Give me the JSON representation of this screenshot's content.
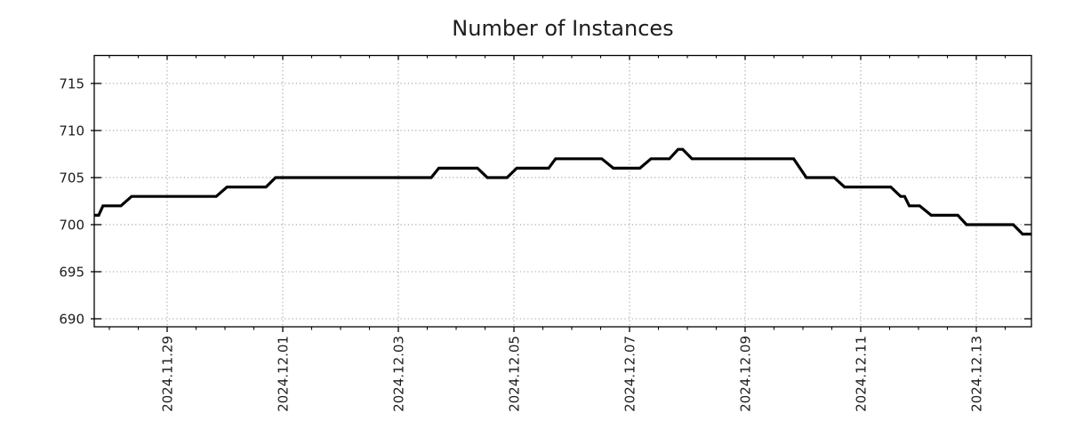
{
  "title": "Number of Instances",
  "colors": {
    "background": "#ffffff",
    "line": "#000000",
    "axis": "#000000",
    "grid": "#9e9e9e",
    "text": "#1c1c1c"
  },
  "chart_data": {
    "type": "line",
    "title": "Number of Instances",
    "legend": {
      "visible": false
    },
    "grid": {
      "on": true,
      "style": "dotted"
    },
    "x_axis": {
      "label": "",
      "unit": "days_from_2024.11.29",
      "range_days": [
        -1.2615,
        14.9538
      ],
      "major_tick_days": [
        0,
        2,
        4,
        6,
        8,
        10,
        12,
        14
      ],
      "tick_labels": [
        "2024.11.29",
        "2024.12.01",
        "2024.12.03",
        "2024.12.05",
        "2024.12.07",
        "2024.12.09",
        "2024.12.11",
        "2024.12.13"
      ],
      "minor_tick_step_days": 0.5,
      "label_rotation_deg": -90
    },
    "y_axis": {
      "label": "",
      "range": [
        689.15,
        717.97
      ],
      "tick_values": [
        690,
        695,
        700,
        705,
        710,
        715
      ],
      "tick_labels": [
        "690",
        "695",
        "700",
        "705",
        "710",
        "715"
      ]
    },
    "series": [
      {
        "name": "instances",
        "color": "#000000",
        "line_width": 3.2,
        "points_day_value": [
          [
            -1.262,
            701
          ],
          [
            -1.185,
            701
          ],
          [
            -1.11,
            702
          ],
          [
            -0.8,
            702
          ],
          [
            -0.615,
            703
          ],
          [
            0.85,
            703
          ],
          [
            1.035,
            704
          ],
          [
            1.71,
            704
          ],
          [
            1.875,
            705
          ],
          [
            4.57,
            705
          ],
          [
            4.7,
            706
          ],
          [
            5.37,
            706
          ],
          [
            5.54,
            705
          ],
          [
            5.88,
            705
          ],
          [
            6.05,
            706
          ],
          [
            6.6,
            706
          ],
          [
            6.72,
            707
          ],
          [
            7.52,
            707
          ],
          [
            7.72,
            706
          ],
          [
            8.18,
            706
          ],
          [
            8.37,
            707
          ],
          [
            8.69,
            707
          ],
          [
            8.84,
            708
          ],
          [
            8.92,
            708
          ],
          [
            9.08,
            707
          ],
          [
            10.84,
            707
          ],
          [
            11.06,
            705
          ],
          [
            11.54,
            705
          ],
          [
            11.72,
            704
          ],
          [
            12.52,
            704
          ],
          [
            12.69,
            703
          ],
          [
            12.76,
            703
          ],
          [
            12.84,
            702
          ],
          [
            13.02,
            702
          ],
          [
            13.22,
            701
          ],
          [
            13.68,
            701
          ],
          [
            13.83,
            700
          ],
          [
            14.64,
            700
          ],
          [
            14.8,
            699
          ],
          [
            14.954,
            699
          ]
        ]
      }
    ]
  }
}
